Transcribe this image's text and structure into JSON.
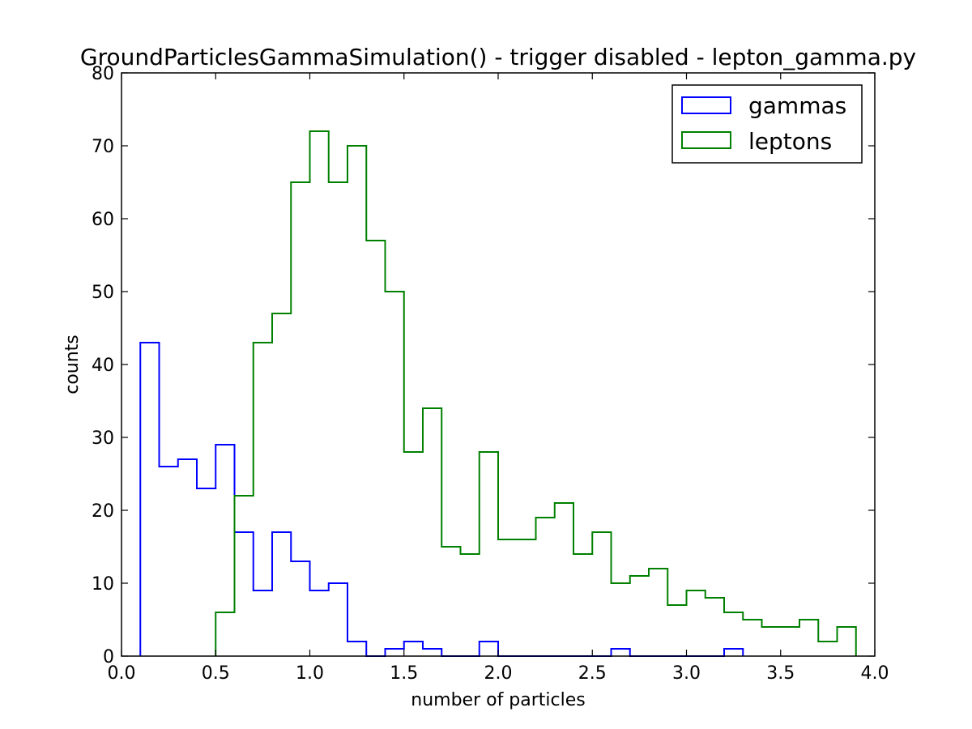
{
  "chart_data": {
    "type": "step-histogram",
    "title": "GroundParticlesGammaSimulation() - trigger disabled - lepton_gamma.py",
    "xlabel": "number of particles",
    "ylabel": "counts",
    "xlim": [
      0.0,
      4.0
    ],
    "ylim": [
      0,
      80
    ],
    "xticks": [
      "0.0",
      "0.5",
      "1.0",
      "1.5",
      "2.0",
      "2.5",
      "3.0",
      "3.5",
      "4.0"
    ],
    "yticks": [
      "0",
      "10",
      "20",
      "30",
      "40",
      "50",
      "60",
      "70",
      "80"
    ],
    "xtick_values": [
      0.0,
      0.5,
      1.0,
      1.5,
      2.0,
      2.5,
      3.0,
      3.5,
      4.0
    ],
    "ytick_values": [
      0,
      10,
      20,
      30,
      40,
      50,
      60,
      70,
      80
    ],
    "bin_width": 0.1,
    "grid": false,
    "legend_position": "top-right",
    "series": [
      {
        "name": "gammas",
        "color": "#0000ff",
        "bin_start": 0.1,
        "values": [
          43,
          26,
          27,
          23,
          29,
          17,
          9,
          17,
          13,
          9,
          10,
          2,
          0,
          1,
          2,
          1,
          0,
          0,
          2,
          0,
          0,
          0,
          0,
          0,
          0,
          1,
          0,
          0,
          0,
          0,
          0,
          1
        ]
      },
      {
        "name": "leptons",
        "color": "#008000",
        "bin_start": 0.5,
        "values": [
          6,
          22,
          43,
          47,
          65,
          72,
          65,
          70,
          57,
          50,
          28,
          34,
          15,
          14,
          28,
          16,
          16,
          19,
          21,
          14,
          17,
          10,
          11,
          12,
          7,
          9,
          8,
          6,
          5,
          4,
          4,
          5,
          2,
          4
        ]
      }
    ]
  }
}
